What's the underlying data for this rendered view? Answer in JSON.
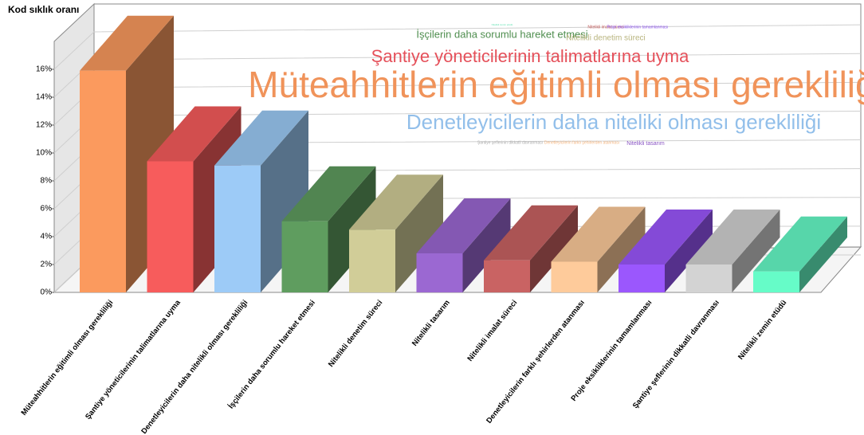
{
  "chart_data": {
    "type": "bar3d",
    "y_label": "Kod sıklık oranı",
    "categories": [
      "Müteahhitlerin eğitimli olması gerekliliği",
      "Şantiye yöneticilerinin talimatlarına uyma",
      "Denetleyicilerin daha nitelikli olması gerekliliği",
      "İşçilerin daha sorumlu hareket etmesi",
      "Nitelikli denetim süreci",
      "Nitelikli tasarım",
      "Nitelikli imalat süreci",
      "Denetleyicilerin farklı şehirlerden atanması",
      "Proje eksikliklerinin tamamlanması",
      "Şantiye şeflerinin dikkatli davranması",
      "Nitelikli zemin etüdü"
    ],
    "values": [
      15.9,
      9.4,
      9.1,
      5.1,
      4.5,
      2.8,
      2.3,
      2.2,
      2.0,
      2.0,
      1.5
    ],
    "colors": [
      "#fb9a5e",
      "#f75c5c",
      "#9dcbf7",
      "#5f9d5f",
      "#d1cd98",
      "#9b68d2",
      "#c96363",
      "#fecb9b",
      "#9b57fd",
      "#d3d3d3",
      "#66fcc8"
    ],
    "ylim": [
      0,
      18
    ],
    "yticks": [
      {
        "value": 0,
        "label": "0%"
      },
      {
        "value": 2,
        "label": "2%"
      },
      {
        "value": 4,
        "label": "4%"
      },
      {
        "value": 6,
        "label": "6%"
      },
      {
        "value": 8,
        "label": "8%"
      },
      {
        "value": 10,
        "label": "10%"
      },
      {
        "value": 12,
        "label": "12%"
      },
      {
        "value": 14,
        "label": "14%"
      },
      {
        "value": 16,
        "label": "16%"
      }
    ],
    "grid": true,
    "word_cloud": [
      {
        "text": "Müteahhitlerin eğitimli olması gerekliliği",
        "color": "#f0935a"
      },
      {
        "text": "Denetleyicilerin daha niteliki olması gerekliliği",
        "color": "#92bfea"
      },
      {
        "text": "Şantiye yöneticilerinin talimatlarına uyma",
        "color": "#e5505a"
      },
      {
        "text": "İşçilerin daha sorumlu hareket etmesi",
        "color": "#4f8e4f"
      },
      {
        "text": "Nitelikli denetim süreci",
        "color": "#b8b47e"
      },
      {
        "text": "Nitelikli tasarım",
        "color": "#8a55c4"
      },
      {
        "text": "Nitelikli imalat süreci",
        "color": "#c05858"
      },
      {
        "text": "Proje eksikliklerinin tamamlanması",
        "color": "#8a4ff0"
      },
      {
        "text": "Şantiye şeflerinin dikkatli davranması",
        "color": "#aaaaaa"
      },
      {
        "text": "Denetleyicilerin farklı şehirlerden atanması",
        "color": "#f3b27a"
      },
      {
        "text": "Nitelikli zemin etüdü",
        "color": "#5ee0b0"
      }
    ]
  }
}
